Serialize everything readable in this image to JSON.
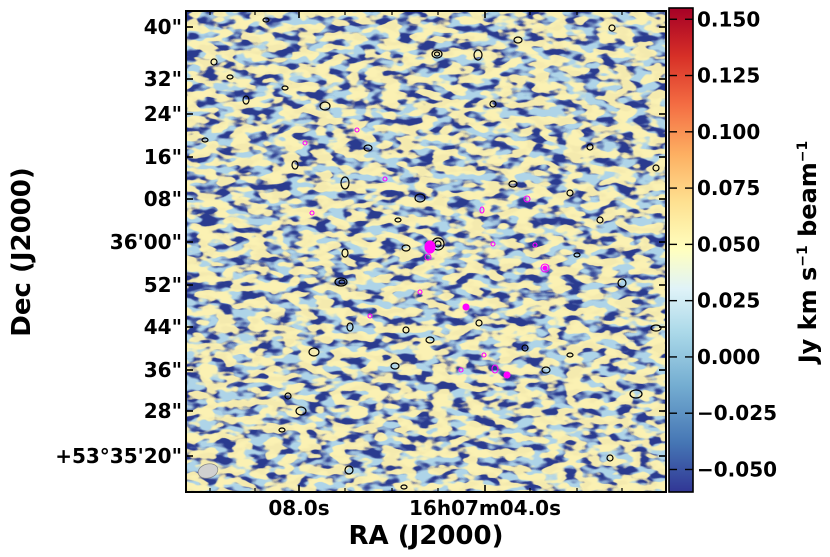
{
  "chart_data": {
    "type": "heatmap",
    "title": "",
    "xlabel": "RA (J2000)",
    "ylabel": "Dec (J2000)",
    "x_ticks": [
      "08.0s",
      "16h07m04.0s"
    ],
    "y_ticks": [
      "40\"",
      "32\"",
      "24\"",
      "16\"",
      "08\"",
      "36'00\"",
      "52\"",
      "44\"",
      "36\"",
      "28\"",
      "+53°35'20\""
    ],
    "colorbar": {
      "label_main": "Jy km s",
      "label_sup1": "−1",
      "label_mid": " beam",
      "label_sup2": "−1",
      "vmin": -0.06,
      "vmax": 0.155,
      "ticks": [
        {
          "value": 0.15,
          "label": "0.150"
        },
        {
          "value": 0.125,
          "label": "0.125"
        },
        {
          "value": 0.1,
          "label": "0.100"
        },
        {
          "value": 0.075,
          "label": "0.075"
        },
        {
          "value": 0.05,
          "label": "0.050"
        },
        {
          "value": 0.025,
          "label": "0.025"
        },
        {
          "value": 0.0,
          "label": "0.000"
        },
        {
          "value": -0.025,
          "label": "−0.025"
        },
        {
          "value": -0.05,
          "label": "−0.050"
        }
      ],
      "colormap": "RdYlBu_r"
    },
    "colors": {
      "contour_black": "#000000",
      "contour_magenta": "#ff00ff",
      "beam_fill": "#d0d0d0"
    }
  }
}
